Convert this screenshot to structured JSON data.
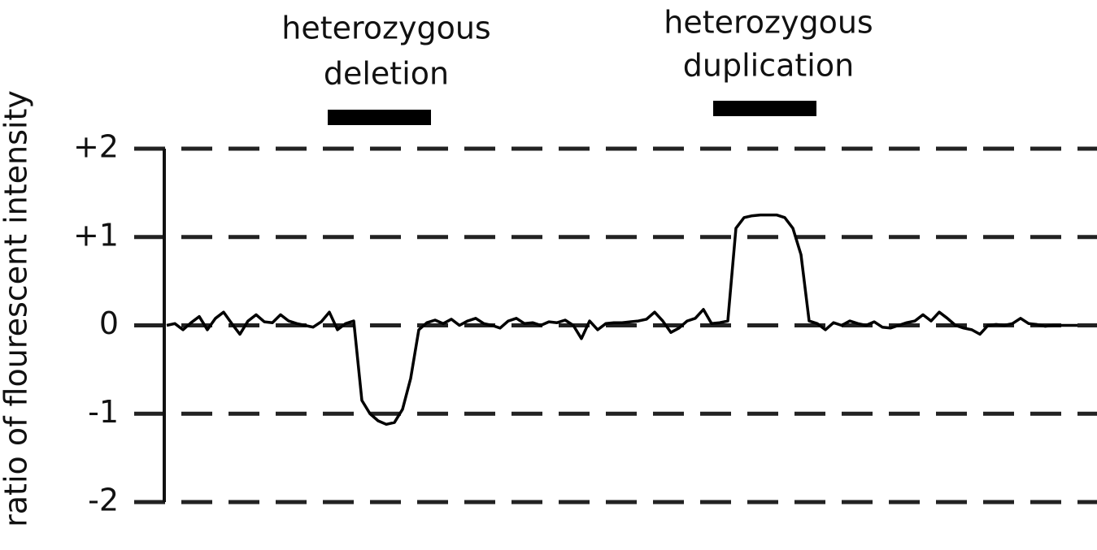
{
  "chart_data": {
    "type": "line",
    "y_label": "ratio of flourescent intensity",
    "annotations": [
      [
        "heterozygous",
        "deletion"
      ],
      [
        "heterozygous",
        "duplication"
      ]
    ],
    "categories": [
      null,
      null,
      null,
      null,
      null,
      null,
      null,
      null,
      null,
      null,
      null,
      null,
      null,
      null,
      null,
      null,
      null,
      null,
      null,
      null,
      null,
      null,
      null,
      null,
      null,
      null,
      null,
      null,
      null,
      null,
      null,
      null,
      null,
      null,
      null,
      null,
      null,
      null,
      null,
      null,
      null,
      null,
      null,
      null,
      null,
      null,
      null,
      null,
      null,
      null,
      null,
      null,
      null,
      null,
      null,
      null,
      null,
      null,
      null,
      null,
      null,
      null,
      null,
      null,
      null,
      null,
      null,
      null,
      null,
      null,
      null,
      null,
      null,
      null,
      null,
      null,
      null,
      null,
      null,
      null,
      null,
      null,
      null,
      null,
      null,
      null,
      null,
      null,
      null,
      null,
      null,
      null,
      null,
      null,
      null,
      null,
      null,
      null,
      null,
      null,
      null,
      null,
      null,
      null,
      null,
      null,
      null,
      null,
      null,
      null,
      null,
      null,
      null
    ],
    "values": [
      0,
      0.02,
      -0.05,
      0.03,
      0.1,
      -0.05,
      0.08,
      0.15,
      0.02,
      -0.1,
      0.05,
      0.12,
      0.04,
      0.03,
      0.12,
      0.05,
      0.02,
      0,
      -0.02,
      0.04,
      0.15,
      -0.05,
      0.02,
      0.05,
      -0.85,
      -1,
      -1.08,
      -1.12,
      -1.1,
      -0.95,
      -0.6,
      -0.05,
      0.03,
      0.06,
      0.02,
      0.07,
      0,
      0.05,
      0.08,
      0.02,
      0,
      -0.03,
      0.05,
      0.08,
      0.02,
      0.03,
      0,
      0.04,
      0.03,
      0.06,
      0,
      -0.15,
      0.05,
      -0.05,
      0.02,
      0.03,
      0.03,
      0.04,
      0.05,
      0.07,
      0.15,
      0.05,
      -0.08,
      -0.03,
      0.05,
      0.08,
      0.18,
      0.02,
      0.03,
      0.05,
      1.1,
      1.22,
      1.24,
      1.25,
      1.25,
      1.25,
      1.22,
      1.1,
      0.8,
      0.05,
      0.02,
      -0.05,
      0.03,
      0,
      0.05,
      0.02,
      0,
      0.04,
      -0.02,
      -0.03,
      0,
      0.03,
      0.05,
      0.12,
      0.05,
      0.15,
      0.08,
      0,
      -0.03,
      -0.05,
      -0.1,
      0,
      0.01,
      0,
      0.02,
      0.08,
      0.02,
      0.01,
      -0.01,
      0,
      0,
      0,
      0
    ],
    "color": "#000000",
    "ylim": [
      -2,
      2
    ],
    "yticks": [
      {
        "value": 2,
        "label": "+2"
      },
      {
        "value": 1,
        "label": "+1"
      },
      0,
      -1,
      -2
    ],
    "grid": true
  }
}
